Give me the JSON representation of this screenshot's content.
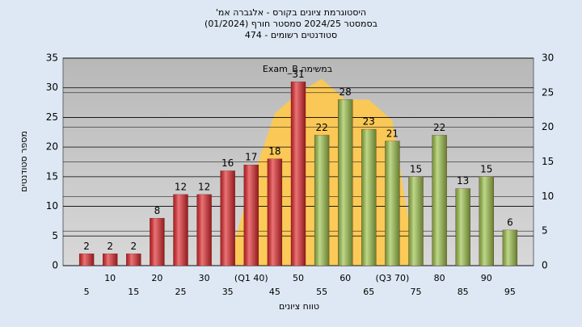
{
  "chart_data": {
    "type": "bar",
    "title": "היסטוגרמת ציונים בקורס - אלגברה אמ'",
    "subtitle": "בסמסטר 2024/25 סמסטר חורף (01/2024)",
    "subtitle2": "סטודנטים רשומים - 474",
    "x_label": "טווח ציונים",
    "y_label": "מספר סטודנטים",
    "annotation": "במשימה Exam_B",
    "categories": [
      "5",
      "10",
      "15",
      "20",
      "25",
      "30",
      "35",
      "(Q1 40)",
      "45",
      "50",
      "55",
      "60",
      "65",
      "(Q3 70)",
      "75",
      "80",
      "85",
      "90",
      "95"
    ],
    "values": [
      2,
      2,
      2,
      8,
      12,
      12,
      16,
      17,
      18,
      31,
      22,
      28,
      23,
      21,
      15,
      22,
      13,
      15,
      6
    ],
    "colors": [
      "#e0282c",
      "#e0282c",
      "#e0282c",
      "#e0282c",
      "#e0282c",
      "#e0282c",
      "#e0282c",
      "#e0282c",
      "#e0282c",
      "#e0282c",
      "#9cc24a",
      "#9cc24a",
      "#9cc24a",
      "#9cc24a",
      "#9cc24a",
      "#9cc24a",
      "#9cc24a",
      "#9cc24a",
      "#9cc24a"
    ],
    "area": {
      "color": "#ffc94a",
      "axis": "y2",
      "values": [
        null,
        null,
        null,
        null,
        null,
        null,
        0,
        12,
        22,
        25,
        27,
        24,
        24,
        21,
        0,
        null,
        null,
        null,
        null
      ]
    },
    "ylim": [
      0,
      35
    ],
    "yticks": [
      0,
      5,
      10,
      15,
      20,
      25,
      30,
      35
    ],
    "y2lim": [
      0,
      30
    ],
    "y2ticks": [
      0,
      5,
      10,
      15,
      20,
      25,
      30
    ],
    "grid": true
  }
}
